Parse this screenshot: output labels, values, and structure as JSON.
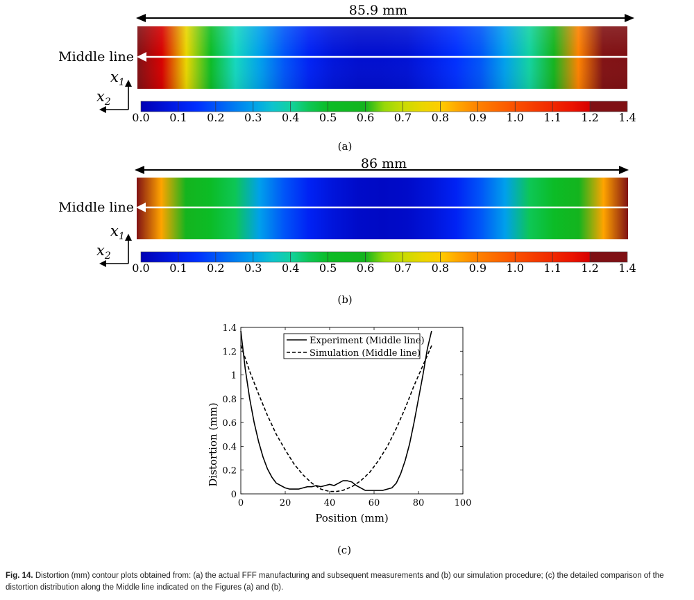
{
  "panels": [
    {
      "id": "a",
      "dimension_label": "85.9 mm",
      "middle_line_label": "Middle line",
      "axis_x1": "x",
      "axis_x1_sub": "1",
      "axis_x2": "x",
      "axis_x2_sub": "2",
      "sublabel": "(a)",
      "colorbar_ticks": [
        "0.0",
        "0.1",
        "0.2",
        "0.3",
        "0.4",
        "0.5",
        "0.6",
        "0.7",
        "0.8",
        "0.9",
        "1.0",
        "1.1",
        "1.2",
        "1.4"
      ],
      "edge_profile": [
        1.4,
        1.2,
        0.75,
        0.5,
        0.38,
        0.3,
        0.2,
        0.12,
        0.07,
        0.05,
        0.05,
        0.06,
        0.1,
        0.15,
        0.2,
        0.3,
        0.4,
        0.6,
        0.9,
        1.25,
        1.4
      ]
    },
    {
      "id": "b",
      "dimension_label": "86 mm",
      "middle_line_label": "Middle line",
      "axis_x1": "x",
      "axis_x1_sub": "1",
      "axis_x2": "x",
      "axis_x2_sub": "2",
      "sublabel": "(b)",
      "colorbar_ticks": [
        "0.0",
        "0.1",
        "0.2",
        "0.3",
        "0.4",
        "0.5",
        "0.6",
        "0.7",
        "0.8",
        "0.9",
        "1.0",
        "1.1",
        "1.2",
        "1.4"
      ],
      "edge_profile": [
        1.25,
        0.85,
        0.6,
        0.5,
        0.45,
        0.3,
        0.2,
        0.12,
        0.07,
        0.04,
        0.03,
        0.04,
        0.07,
        0.12,
        0.2,
        0.3,
        0.45,
        0.5,
        0.6,
        0.85,
        1.25
      ]
    }
  ],
  "colors": {
    "dark_red": "#7f1014",
    "line": "#000000",
    "arrow_white": "#ffffff"
  },
  "chart_data": {
    "type": "line",
    "sublabel": "(c)",
    "xlabel": "Position (mm)",
    "ylabel": "Distortion (mm)",
    "xlim": [
      0,
      100
    ],
    "ylim": [
      0,
      1.4
    ],
    "xticks": [
      "0",
      "20",
      "40",
      "60",
      "80",
      "100"
    ],
    "yticks": [
      "0",
      "0.2",
      "0.4",
      "0.6",
      "0.8",
      "1",
      "1.2",
      "1.4"
    ],
    "grid": false,
    "legend_position": "top-right",
    "series": [
      {
        "name": "Experiment (Middle line)",
        "style": "solid",
        "x": [
          0,
          2,
          4,
          6,
          8,
          10,
          12,
          14,
          16,
          18,
          20,
          22,
          24,
          26,
          28,
          30,
          32,
          34,
          36,
          38,
          40,
          42,
          44,
          46,
          48,
          50,
          52,
          54,
          56,
          58,
          60,
          62,
          64,
          66,
          68,
          70,
          72,
          74,
          76,
          78,
          80,
          82,
          84,
          85.9
        ],
        "y": [
          1.37,
          1.05,
          0.8,
          0.6,
          0.44,
          0.31,
          0.21,
          0.14,
          0.09,
          0.07,
          0.05,
          0.04,
          0.04,
          0.04,
          0.05,
          0.06,
          0.06,
          0.07,
          0.06,
          0.07,
          0.08,
          0.07,
          0.09,
          0.11,
          0.11,
          0.1,
          0.07,
          0.05,
          0.03,
          0.03,
          0.03,
          0.03,
          0.03,
          0.04,
          0.05,
          0.09,
          0.17,
          0.28,
          0.42,
          0.6,
          0.8,
          1.0,
          1.22,
          1.37
        ]
      },
      {
        "name": "Simulation (Middle line)",
        "style": "dashed",
        "x": [
          0,
          4,
          8,
          12,
          16,
          20,
          24,
          28,
          32,
          36,
          40,
          43,
          46,
          50,
          54,
          58,
          62,
          66,
          70,
          74,
          78,
          82,
          86
        ],
        "y": [
          1.25,
          1.03,
          0.84,
          0.66,
          0.5,
          0.37,
          0.25,
          0.16,
          0.09,
          0.04,
          0.02,
          0.02,
          0.03,
          0.06,
          0.11,
          0.18,
          0.28,
          0.4,
          0.55,
          0.72,
          0.91,
          1.08,
          1.25
        ]
      }
    ]
  },
  "caption": {
    "label": "Fig. 14.",
    "text": " Distortion (mm) contour plots obtained from: (a) the actual FFF manufacturing and subsequent measurements and (b) our simulation procedure; (c) the detailed comparison of the distortion distribution along the Middle line indicated on the Figures (a) and (b)."
  }
}
